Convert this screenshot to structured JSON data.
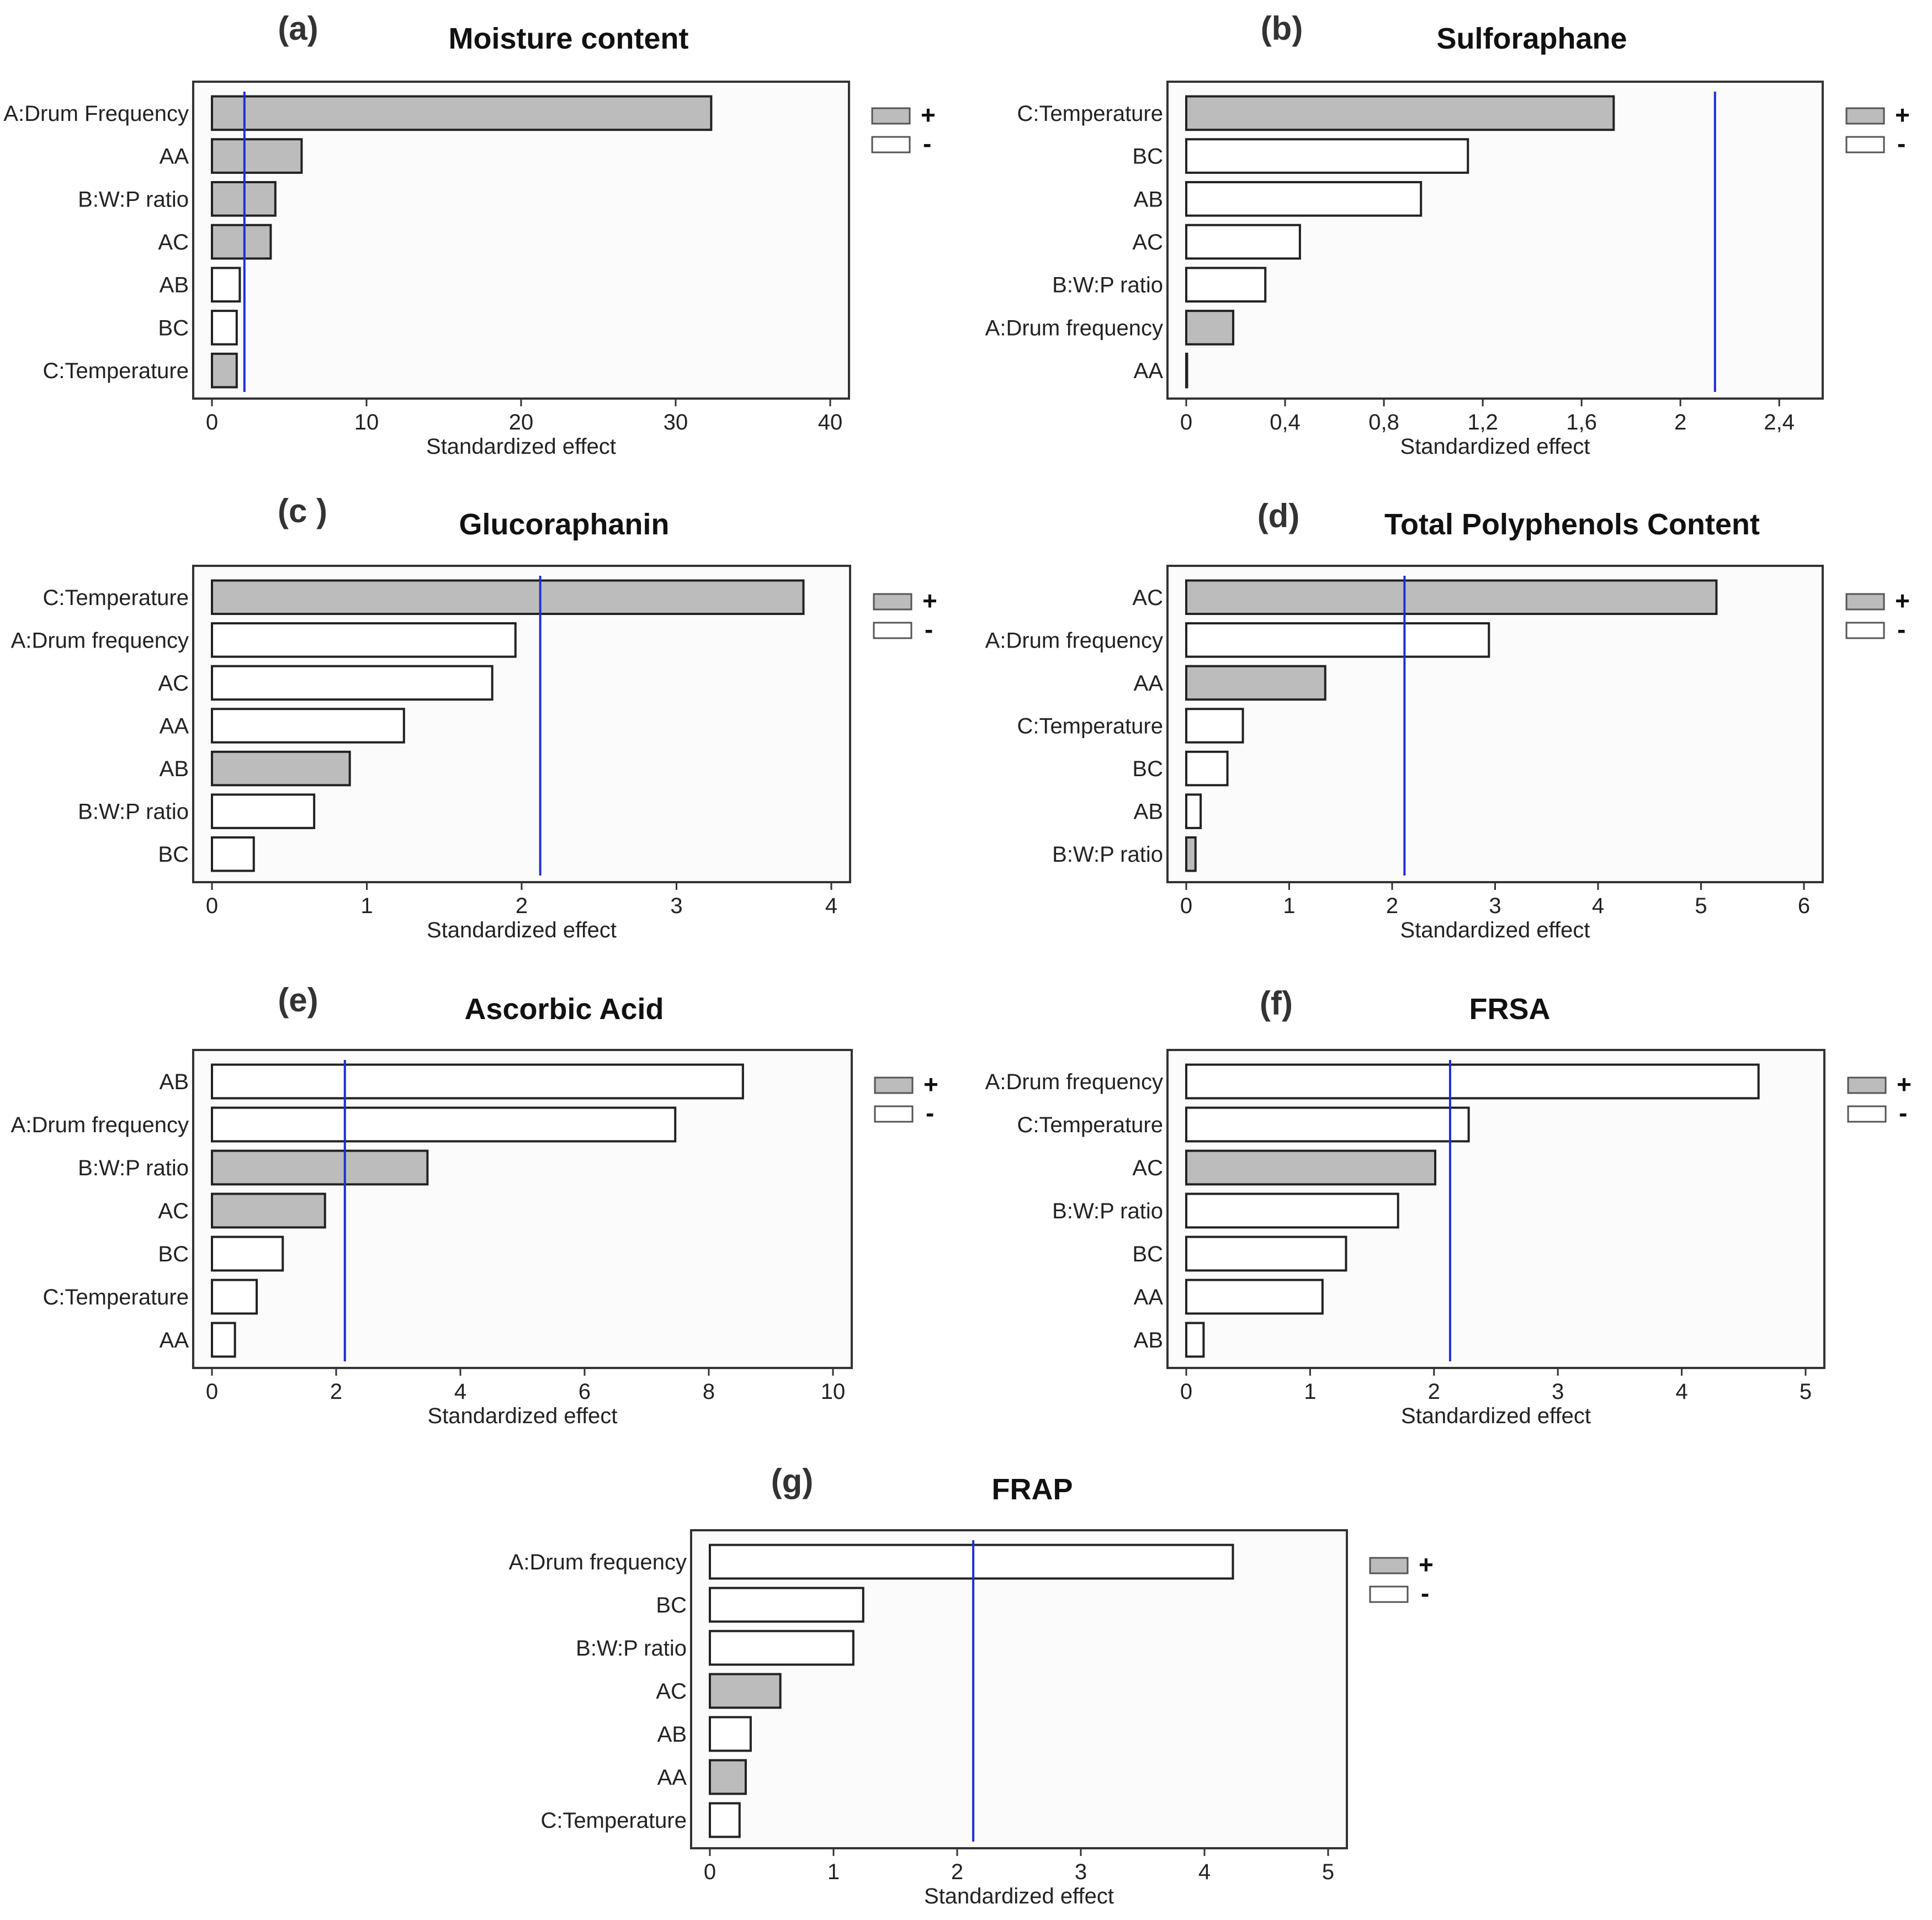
{
  "chart_data": [
    {
      "panel": "(a)",
      "type": "bar",
      "orientation": "horizontal",
      "title": "Moisture content",
      "xlabel": "Standardized effect",
      "xlim": [
        0,
        40
      ],
      "xticks": [
        "0",
        "10",
        "20",
        "30",
        "40"
      ],
      "reference_line": 2.1,
      "legend": {
        "plus": "+",
        "minus": "-"
      },
      "bars": [
        {
          "label": "A:Drum Frequency",
          "value": 32.3,
          "sign": "+"
        },
        {
          "label": "AA",
          "value": 5.8,
          "sign": "+"
        },
        {
          "label": "B:W:P ratio",
          "value": 4.1,
          "sign": "+"
        },
        {
          "label": "AC",
          "value": 3.8,
          "sign": "+"
        },
        {
          "label": "AB",
          "value": 1.8,
          "sign": "-"
        },
        {
          "label": "BC",
          "value": 1.6,
          "sign": "-"
        },
        {
          "label": "C:Temperature",
          "value": 1.6,
          "sign": "+"
        }
      ]
    },
    {
      "panel": "(b)",
      "type": "bar",
      "orientation": "horizontal",
      "title": "Sulforaphane",
      "xlabel": "Standardized effect",
      "xlim": [
        0,
        2.5
      ],
      "xticks": [
        "0",
        "0,4",
        "0,8",
        "1,2",
        "1,6",
        "2",
        "2,4"
      ],
      "reference_line": 2.14,
      "legend": {
        "plus": "+",
        "minus": "-"
      },
      "bars": [
        {
          "label": "C:Temperature",
          "value": 1.73,
          "sign": "+"
        },
        {
          "label": "BC",
          "value": 1.14,
          "sign": "-"
        },
        {
          "label": "AB",
          "value": 0.95,
          "sign": "-"
        },
        {
          "label": "AC",
          "value": 0.46,
          "sign": "-"
        },
        {
          "label": "B:W:P ratio",
          "value": 0.32,
          "sign": "-"
        },
        {
          "label": "A:Drum frequency",
          "value": 0.19,
          "sign": "+"
        },
        {
          "label": "AA",
          "value": 0.0,
          "sign": "+"
        }
      ]
    },
    {
      "panel": "(c )",
      "type": "bar",
      "orientation": "horizontal",
      "title": "Glucoraphanin",
      "xlabel": "Standardized effect",
      "xlim": [
        0,
        4
      ],
      "xticks": [
        "0",
        "1",
        "2",
        "3",
        "4"
      ],
      "reference_line": 2.12,
      "legend": {
        "plus": "+",
        "minus": "-"
      },
      "bars": [
        {
          "label": "C:Temperature",
          "value": 3.82,
          "sign": "+"
        },
        {
          "label": "A:Drum frequency",
          "value": 1.96,
          "sign": "-"
        },
        {
          "label": "AC",
          "value": 1.81,
          "sign": "-"
        },
        {
          "label": "AA",
          "value": 1.24,
          "sign": "-"
        },
        {
          "label": "AB",
          "value": 0.89,
          "sign": "+"
        },
        {
          "label": "B:W:P ratio",
          "value": 0.66,
          "sign": "-"
        },
        {
          "label": "BC",
          "value": 0.27,
          "sign": "-"
        }
      ]
    },
    {
      "panel": "(d)",
      "type": "bar",
      "orientation": "horizontal",
      "title": "Total Polyphenols Content",
      "xlabel": "Standardized effect",
      "xlim": [
        0,
        6
      ],
      "xticks": [
        "0",
        "1",
        "2",
        "3",
        "4",
        "5",
        "6"
      ],
      "reference_line": 2.12,
      "legend": {
        "plus": "+",
        "minus": "-"
      },
      "bars": [
        {
          "label": "AC",
          "value": 5.15,
          "sign": "+"
        },
        {
          "label": "A:Drum frequency",
          "value": 2.94,
          "sign": "-"
        },
        {
          "label": "AA",
          "value": 1.35,
          "sign": "+"
        },
        {
          "label": "C:Temperature",
          "value": 0.55,
          "sign": "-"
        },
        {
          "label": "BC",
          "value": 0.4,
          "sign": "-"
        },
        {
          "label": "AB",
          "value": 0.14,
          "sign": "-"
        },
        {
          "label": "B:W:P ratio",
          "value": 0.09,
          "sign": "+"
        }
      ]
    },
    {
      "panel": "(e)",
      "type": "bar",
      "orientation": "horizontal",
      "title": "Ascorbic Acid",
      "xlabel": "Standardized effect",
      "xlim": [
        0,
        10
      ],
      "xticks": [
        "0",
        "2",
        "4",
        "6",
        "8",
        "10"
      ],
      "reference_line": 2.14,
      "legend": {
        "plus": "+",
        "minus": "-"
      },
      "bars": [
        {
          "label": "AB",
          "value": 8.55,
          "sign": "-"
        },
        {
          "label": "A:Drum frequency",
          "value": 7.46,
          "sign": "-"
        },
        {
          "label": "B:W:P ratio",
          "value": 3.47,
          "sign": "+"
        },
        {
          "label": "AC",
          "value": 1.82,
          "sign": "+"
        },
        {
          "label": "BC",
          "value": 1.14,
          "sign": "-"
        },
        {
          "label": "C:Temperature",
          "value": 0.72,
          "sign": "-"
        },
        {
          "label": "AA",
          "value": 0.37,
          "sign": "-"
        }
      ]
    },
    {
      "panel": "(f)",
      "type": "bar",
      "orientation": "horizontal",
      "title": "FRSA",
      "xlabel": "Standardized effect",
      "xlim": [
        0,
        5
      ],
      "xticks": [
        "0",
        "1",
        "2",
        "3",
        "4",
        "5"
      ],
      "reference_line": 2.13,
      "legend": {
        "plus": "+",
        "minus": "-"
      },
      "bars": [
        {
          "label": "A:Drum frequency",
          "value": 4.62,
          "sign": "-"
        },
        {
          "label": "C:Temperature",
          "value": 2.28,
          "sign": "-"
        },
        {
          "label": "AC",
          "value": 2.01,
          "sign": "+"
        },
        {
          "label": "B:W:P ratio",
          "value": 1.71,
          "sign": "-"
        },
        {
          "label": "BC",
          "value": 1.29,
          "sign": "-"
        },
        {
          "label": "AA",
          "value": 1.1,
          "sign": "-"
        },
        {
          "label": "AB",
          "value": 0.14,
          "sign": "-"
        }
      ]
    },
    {
      "panel": "(g)",
      "type": "bar",
      "orientation": "horizontal",
      "title": "FRAP",
      "xlabel": "Standardized effect",
      "xlim": [
        0,
        5
      ],
      "xticks": [
        "0",
        "1",
        "2",
        "3",
        "4",
        "5"
      ],
      "reference_line": 2.13,
      "legend": {
        "plus": "+",
        "minus": "-"
      },
      "bars": [
        {
          "label": "A:Drum frequency",
          "value": 4.23,
          "sign": "-"
        },
        {
          "label": "BC",
          "value": 1.24,
          "sign": "-"
        },
        {
          "label": "B:W:P ratio",
          "value": 1.16,
          "sign": "-"
        },
        {
          "label": "AC",
          "value": 0.57,
          "sign": "+"
        },
        {
          "label": "AB",
          "value": 0.33,
          "sign": "-"
        },
        {
          "label": "AA",
          "value": 0.29,
          "sign": "+"
        },
        {
          "label": "C:Temperature",
          "value": 0.24,
          "sign": "-"
        }
      ]
    }
  ],
  "colors": {
    "positive_fill": "#bcbcbc",
    "negative_fill": "#ffffff",
    "bar_stroke": "#222222",
    "reference_line": "#1f2fd6",
    "frame": "#333333",
    "panel_background": "#fbfbfb"
  }
}
